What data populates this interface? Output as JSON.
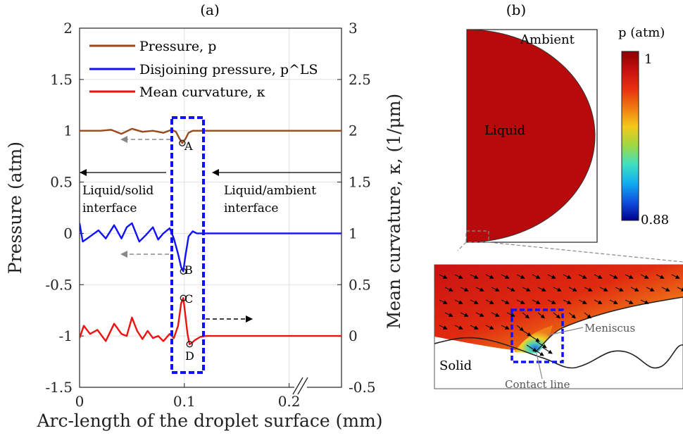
{
  "panel_a": {
    "label": "(a)",
    "annotations": {
      "A": "A",
      "B": "B",
      "C": "C",
      "D": "D",
      "ls_line1": "Liquid/solid",
      "ls_line2": "interface",
      "la_line1": "Liquid/ambient",
      "la_line2": "interface"
    }
  },
  "panel_b": {
    "label": "(b)",
    "ambient": "Ambient",
    "liquid": "Liquid",
    "solid": "Solid",
    "meniscus": "Meniscus",
    "contact_line": "Contact line",
    "colorbar": {
      "title": "p (atm)",
      "max_label": "1",
      "min_label": "0.88",
      "stops": [
        "#8b0000",
        "#c81010",
        "#e83010",
        "#f07a10",
        "#f5c81a",
        "#9fd840",
        "#40e0c0",
        "#10b0f0",
        "#1050e0",
        "#000090"
      ]
    }
  },
  "chart_data": {
    "type": "line",
    "xlabel": "Arc-length of the droplet surface (mm)",
    "ylabel": "Pressure (atm)",
    "y2label": "Mean curvature, κ, (1/μm)",
    "xlim": [
      0,
      0.25
    ],
    "ylim": [
      -1.5,
      2
    ],
    "y2lim": [
      -0.5,
      3
    ],
    "xticks": [
      0,
      0.1,
      0.2
    ],
    "xtick_labels": [
      "0",
      "0.1",
      "0.2"
    ],
    "yticks": [
      -1.5,
      -1,
      -0.5,
      0,
      0.5,
      1,
      1.5,
      2
    ],
    "ytick_labels": [
      "-1.5",
      "-1",
      "-0.5",
      "0",
      "0.5",
      "1",
      "1.5",
      "2"
    ],
    "y2ticks": [
      -0.5,
      0,
      0.5,
      1,
      1.5,
      2,
      2.5,
      3
    ],
    "y2tick_labels": [
      "-0.5",
      "0",
      "0.5",
      "1",
      "1.5",
      "2",
      "2.5",
      "3"
    ],
    "grid": true,
    "legend_placement": "top-left",
    "series": [
      {
        "name": "Pressure, p",
        "color": "#9a4a1a",
        "axis": "left",
        "x": [
          0,
          0.01,
          0.02,
          0.03,
          0.04,
          0.05,
          0.06,
          0.07,
          0.08,
          0.088,
          0.092,
          0.095,
          0.098,
          0.101,
          0.104,
          0.108,
          0.115,
          0.13,
          0.15,
          0.2,
          0.25
        ],
        "y": [
          1.0,
          1.0,
          1.0,
          1.01,
          0.97,
          1.02,
          0.99,
          1.0,
          0.98,
          1.01,
          0.99,
          0.93,
          0.88,
          0.92,
          0.98,
          1.0,
          1.0,
          1.0,
          1.0,
          1.0,
          1.0
        ]
      },
      {
        "name": "Disjoining pressure, p^LS",
        "color": "#1010ff",
        "axis": "left",
        "x": [
          0,
          0.003,
          0.01,
          0.018,
          0.025,
          0.033,
          0.04,
          0.045,
          0.05,
          0.057,
          0.063,
          0.07,
          0.075,
          0.08,
          0.086,
          0.09,
          0.094,
          0.097,
          0.099,
          0.101,
          0.104,
          0.108,
          0.112,
          0.12,
          0.15,
          0.2,
          0.25
        ],
        "y": [
          0.1,
          -0.08,
          -0.03,
          0.03,
          -0.05,
          0.08,
          -0.05,
          0.06,
          0.1,
          -0.08,
          -0.02,
          0.06,
          -0.06,
          0.0,
          0.05,
          -0.05,
          -0.2,
          -0.33,
          -0.37,
          -0.22,
          -0.03,
          0.02,
          0.0,
          0.0,
          0.0,
          0.0,
          0.0
        ]
      },
      {
        "name": "Mean curvature, κ",
        "color": "#f01010",
        "axis": "right",
        "x": [
          0,
          0.004,
          0.01,
          0.017,
          0.025,
          0.033,
          0.04,
          0.045,
          0.05,
          0.055,
          0.06,
          0.065,
          0.07,
          0.075,
          0.08,
          0.086,
          0.09,
          0.094,
          0.097,
          0.099,
          0.101,
          0.103,
          0.105,
          0.107,
          0.11,
          0.115,
          0.12,
          0.15,
          0.2,
          0.25
        ],
        "y": [
          -0.02,
          0.1,
          0.02,
          0.06,
          -0.05,
          0.12,
          0.02,
          0.0,
          0.18,
          0.05,
          -0.03,
          0.05,
          -0.02,
          0.0,
          -0.05,
          0.02,
          -0.02,
          0.1,
          0.32,
          0.37,
          0.2,
          0.02,
          -0.08,
          -0.07,
          -0.04,
          -0.01,
          0.0,
          0.0,
          0.0,
          0.0
        ]
      }
    ],
    "legend_entries": [
      "Pressure, p",
      "Disjoining pressure, p^LS",
      "Mean curvature, κ"
    ]
  }
}
